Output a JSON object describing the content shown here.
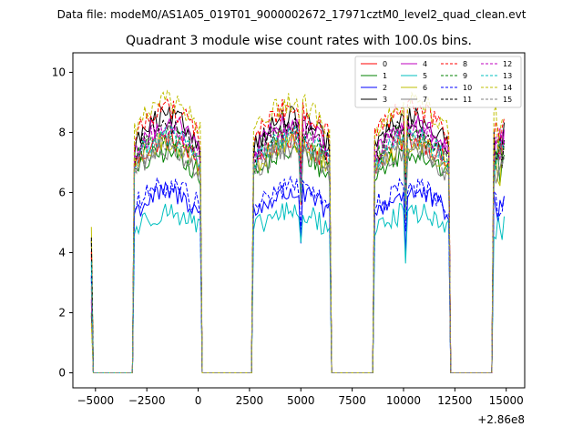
{
  "chart_data": {
    "type": "line",
    "suptitle": "Data file: modeM0/AS1A05_019T01_9000002672_17971cztM0_level2_quad_clean.evt",
    "title": "Quadrant 3 module wise count rates with 100.0s bins.",
    "xlabel": "",
    "ylabel": "",
    "offset_text": "+2.86e8",
    "xlim": [
      -6100,
      15900
    ],
    "ylim": [
      -0.5,
      10.65
    ],
    "xticks": [
      -5000,
      -2500,
      0,
      2500,
      5000,
      7500,
      10000,
      12500,
      15000
    ],
    "xtick_labels": [
      "−5000",
      "−2500",
      "0",
      "2500",
      "5000",
      "7500",
      "10000",
      "12500",
      "15000"
    ],
    "yticks": [
      0,
      2,
      4,
      6,
      8,
      10
    ],
    "ytick_labels": [
      "0",
      "2",
      "4",
      "6",
      "8",
      "10"
    ],
    "legend_position": "upper right",
    "orbit_segments": [
      {
        "on": -3150,
        "off": 150
      },
      {
        "on": 2700,
        "off": 6450
      },
      {
        "on": 8600,
        "off": 12200
      },
      {
        "on": 14400,
        "off": 14900
      }
    ],
    "series": [
      {
        "name": "0",
        "color": "#ff0000",
        "dash": "solid",
        "level": 7.4
      },
      {
        "name": "1",
        "color": "#008000",
        "dash": "solid",
        "level": 7.0
      },
      {
        "name": "2",
        "color": "#0000ff",
        "dash": "solid",
        "level": 5.7
      },
      {
        "name": "3",
        "color": "#000000",
        "dash": "solid",
        "level": 8.1
      },
      {
        "name": "4",
        "color": "#bf00bf",
        "dash": "solid",
        "level": 7.9
      },
      {
        "name": "5",
        "color": "#00bfbf",
        "dash": "solid",
        "level": 5.1
      },
      {
        "name": "6",
        "color": "#bfbf00",
        "dash": "solid",
        "level": 7.3
      },
      {
        "name": "7",
        "color": "#808080",
        "dash": "solid",
        "level": 7.1
      },
      {
        "name": "8",
        "color": "#ff0000",
        "dash": "dashed",
        "level": 8.4
      },
      {
        "name": "9",
        "color": "#008000",
        "dash": "dashed",
        "level": 7.6
      },
      {
        "name": "10",
        "color": "#0000ff",
        "dash": "dashed",
        "level": 5.9
      },
      {
        "name": "11",
        "color": "#000000",
        "dash": "dashed",
        "level": 7.8
      },
      {
        "name": "12",
        "color": "#bf00bf",
        "dash": "dashed",
        "level": 7.7
      },
      {
        "name": "13",
        "color": "#00bfbf",
        "dash": "dashed",
        "level": 7.5
      },
      {
        "name": "14",
        "color": "#bfbf00",
        "dash": "dashed",
        "level": 8.6
      },
      {
        "name": "15",
        "color": "#808080",
        "dash": "dashed",
        "level": 7.3
      }
    ]
  }
}
